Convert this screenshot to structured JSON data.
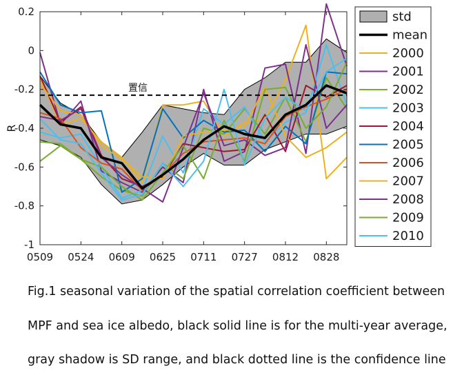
{
  "chart_data": {
    "type": "line",
    "ylabel": "R",
    "ylim": [
      -1,
      0.2
    ],
    "yticks": [
      0.2,
      0,
      -0.2,
      -0.4,
      -0.6,
      -0.8,
      -1
    ],
    "ytick_labels": [
      "0.2",
      "0",
      "-0.2",
      "-0.4",
      "-0.6",
      "-0.8",
      "-1"
    ],
    "x_ticks": [
      "0509",
      "0524",
      "0609",
      "0625",
      "0711",
      "0727",
      "0812",
      "0828"
    ],
    "n_points": 16,
    "grid": false,
    "legend_position": "outside-right",
    "std_band": {
      "name": "std",
      "upper": [
        -0.13,
        -0.27,
        -0.33,
        -0.47,
        -0.55,
        -0.42,
        -0.28,
        -0.3,
        -0.32,
        -0.33,
        -0.2,
        -0.14,
        -0.06,
        -0.06,
        0.06,
        -0.01
      ],
      "lower": [
        -0.46,
        -0.49,
        -0.55,
        -0.69,
        -0.79,
        -0.77,
        -0.69,
        -0.6,
        -0.53,
        -0.59,
        -0.59,
        -0.51,
        -0.47,
        -0.43,
        -0.43,
        -0.39
      ],
      "color": "#b0b0b0"
    },
    "confidence_line": {
      "label": "置信",
      "y": -0.23
    },
    "series": [
      {
        "name": "mean",
        "color": "#000000",
        "values": [
          -0.28,
          -0.38,
          -0.4,
          -0.55,
          -0.58,
          -0.71,
          -0.64,
          -0.56,
          -0.46,
          -0.39,
          -0.43,
          -0.45,
          -0.33,
          -0.28,
          -0.18,
          -0.22
        ]
      },
      {
        "name": "2000",
        "color": "#EDB120",
        "values": [
          -0.14,
          -0.38,
          -0.35,
          -0.47,
          -0.55,
          -0.68,
          -0.28,
          -0.28,
          -0.26,
          -0.44,
          -0.37,
          -0.35,
          -0.15,
          0.13,
          -0.66,
          -0.55
        ]
      },
      {
        "name": "2001",
        "color": "#7E2F8E",
        "values": [
          -0.01,
          -0.38,
          -0.26,
          -0.62,
          -0.68,
          -0.73,
          -0.6,
          -0.68,
          -0.2,
          -0.57,
          -0.52,
          -0.09,
          -0.07,
          -0.53,
          0.24,
          -0.08
        ]
      },
      {
        "name": "2002",
        "color": "#77AC30",
        "values": [
          -0.57,
          -0.49,
          -0.56,
          -0.65,
          -0.72,
          -0.75,
          -0.58,
          -0.66,
          -0.4,
          -0.43,
          -0.3,
          -0.43,
          -0.24,
          -0.47,
          -0.14,
          -0.3
        ]
      },
      {
        "name": "2003",
        "color": "#4DBEEE",
        "values": [
          -0.42,
          -0.45,
          -0.43,
          -0.6,
          -0.76,
          -0.72,
          -0.44,
          -0.63,
          -0.3,
          -0.38,
          -0.29,
          -0.47,
          -0.37,
          -0.32,
          0.03,
          -0.28
        ]
      },
      {
        "name": "2004",
        "color": "#A2142F",
        "values": [
          -0.13,
          -0.37,
          -0.29,
          -0.54,
          -0.66,
          -0.7,
          -0.65,
          -0.48,
          -0.5,
          -0.52,
          -0.51,
          -0.33,
          -0.52,
          -0.18,
          -0.24,
          -0.18
        ]
      },
      {
        "name": "2005",
        "color": "#0072BD",
        "values": [
          -0.11,
          -0.28,
          -0.32,
          -0.31,
          -0.73,
          -0.66,
          -0.3,
          -0.45,
          -0.36,
          -0.42,
          -0.41,
          -0.52,
          -0.39,
          -0.48,
          -0.11,
          -0.12
        ]
      },
      {
        "name": "2006",
        "color": "#D95319",
        "values": [
          -0.32,
          -0.35,
          -0.5,
          -0.58,
          -0.61,
          -0.72,
          -0.64,
          -0.53,
          -0.47,
          -0.46,
          -0.45,
          -0.48,
          -0.34,
          -0.29,
          -0.25,
          -0.2
        ]
      },
      {
        "name": "2007",
        "color": "#EDB120",
        "values": [
          -0.17,
          -0.31,
          -0.33,
          -0.49,
          -0.56,
          -0.65,
          -0.66,
          -0.44,
          -0.42,
          -0.41,
          -0.39,
          -0.19,
          -0.44,
          -0.55,
          -0.5,
          -0.42
        ]
      },
      {
        "name": "2008",
        "color": "#7E2F8E",
        "values": [
          -0.34,
          -0.36,
          -0.3,
          -0.55,
          -0.64,
          -0.71,
          -0.78,
          -0.5,
          -0.22,
          -0.49,
          -0.46,
          -0.54,
          -0.5,
          0.03,
          -0.4,
          -0.28
        ]
      },
      {
        "name": "2009",
        "color": "#77AC30",
        "values": [
          -0.47,
          -0.48,
          -0.56,
          -0.6,
          -0.7,
          -0.77,
          -0.63,
          -0.49,
          -0.66,
          -0.36,
          -0.57,
          -0.2,
          -0.19,
          -0.4,
          -0.29,
          -0.06
        ]
      },
      {
        "name": "2010",
        "color": "#4DBEEE",
        "values": [
          -0.35,
          -0.46,
          -0.48,
          -0.63,
          -0.77,
          -0.74,
          -0.58,
          -0.7,
          -0.57,
          -0.2,
          -0.59,
          -0.35,
          -0.24,
          -0.31,
          -0.11,
          -0.04
        ]
      }
    ]
  },
  "caption": {
    "line1": "Fig.1 seasonal variation of the spatial correlation coefficient between",
    "line2": "MPF and sea ice albedo, black solid line is for the multi-year average,",
    "line3": "gray shadow is SD range, and black dotted line is the confidence line"
  }
}
